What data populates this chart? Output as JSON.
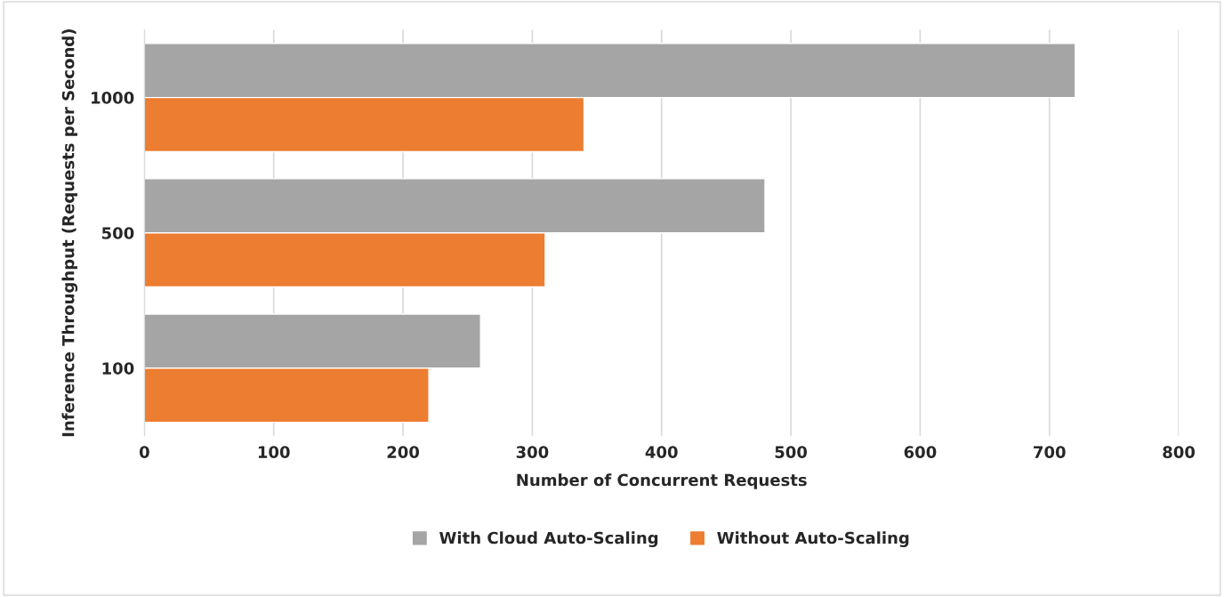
{
  "chart_data": {
    "type": "bar",
    "orientation": "horizontal",
    "xlabel": "Number of Concurrent Requests",
    "ylabel": "Inference Throughput (Requests per Second)",
    "categories": [
      "1000",
      "500",
      "100"
    ],
    "series": [
      {
        "name": "With Cloud Auto-Scaling",
        "color": "#a5a5a5",
        "values": [
          720,
          480,
          260
        ]
      },
      {
        "name": "Without Auto-Scaling",
        "color": "#ed7d31",
        "values": [
          340,
          310,
          220
        ]
      }
    ],
    "xlim": [
      0,
      800
    ],
    "xticks": [
      0,
      100,
      200,
      300,
      400,
      500,
      600,
      700,
      800
    ],
    "grid": "x",
    "legend": "bottom"
  }
}
